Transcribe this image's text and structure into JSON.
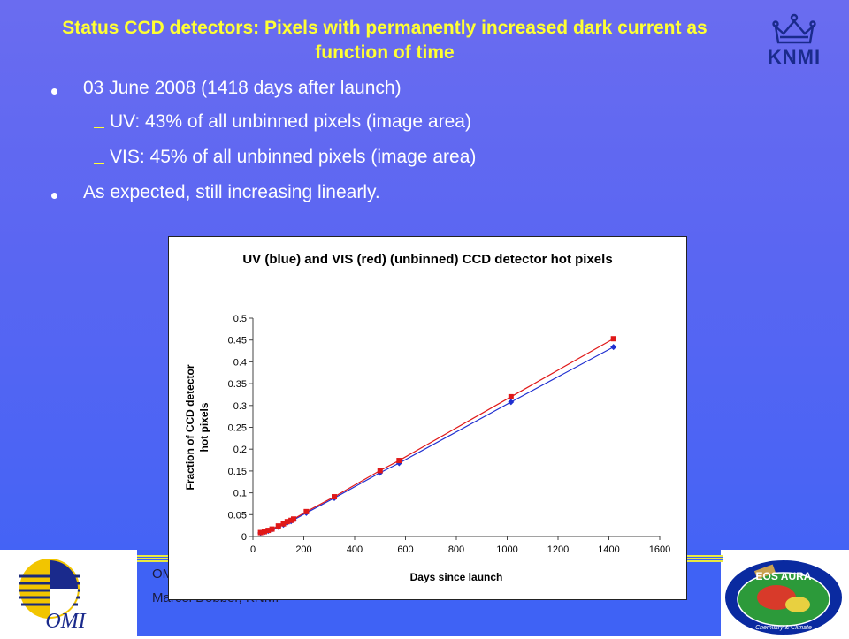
{
  "slide": {
    "title": "Status CCD detectors: Pixels with permanently increased dark current as function of time",
    "logo_knmi": "KNMI",
    "bullets": [
      {
        "level": 1,
        "text": "03 June 2008 (1418 days after launch)"
      },
      {
        "level": 2,
        "text": "UV: 43% of all unbinned pixels (image area)"
      },
      {
        "level": 2,
        "text": "VIS: 45% of all unbinned pixels (image area)"
      },
      {
        "level": 1,
        "text": "As expected, still increasing linearly."
      }
    ],
    "footer_line1": "OMI",
    "footer_line2": "Marcel Dobber, KNMI",
    "logo_omi": "OMI",
    "logo_aura": "EOS AURA",
    "logo_aura_sub": "Chemistry & Climate",
    "colors": {
      "title": "#ffff33",
      "bullet_text": "#ffffff",
      "uv_series": "#1f2fd0",
      "vis_series": "#e01818"
    }
  },
  "chart_data": {
    "type": "scatter",
    "title": "UV (blue) and VIS (red) (unbinned) CCD detector hot pixels",
    "xlabel": "Days since launch",
    "ylabel": "Fraction of CCD detector hot pixels",
    "xlim": [
      0,
      1600
    ],
    "ylim": [
      0,
      0.5
    ],
    "xticks": [
      "0",
      "200",
      "400",
      "600",
      "800",
      "1000",
      "1200",
      "1400",
      "1600"
    ],
    "yticks": [
      "0",
      "0.05",
      "0.1",
      "0.15",
      "0.2",
      "0.25",
      "0.3",
      "0.35",
      "0.4",
      "0.45",
      "0.5"
    ],
    "grid": false,
    "legend": "none",
    "series": [
      {
        "color": "#1f2fd0",
        "marker": "diamond",
        "x": [
          30,
          45,
          60,
          75,
          100,
          120,
          135,
          150,
          160,
          210,
          320,
          500,
          575,
          1015,
          1418
        ],
        "y": [
          0.008,
          0.01,
          0.013,
          0.016,
          0.022,
          0.027,
          0.032,
          0.035,
          0.038,
          0.054,
          0.088,
          0.146,
          0.168,
          0.308,
          0.434
        ]
      },
      {
        "color": "#e01818",
        "marker": "square",
        "x": [
          30,
          45,
          60,
          75,
          100,
          120,
          135,
          150,
          160,
          210,
          320,
          500,
          575,
          1015,
          1418
        ],
        "y": [
          0.009,
          0.011,
          0.014,
          0.017,
          0.024,
          0.029,
          0.034,
          0.037,
          0.04,
          0.057,
          0.091,
          0.151,
          0.174,
          0.32,
          0.453
        ]
      }
    ]
  }
}
